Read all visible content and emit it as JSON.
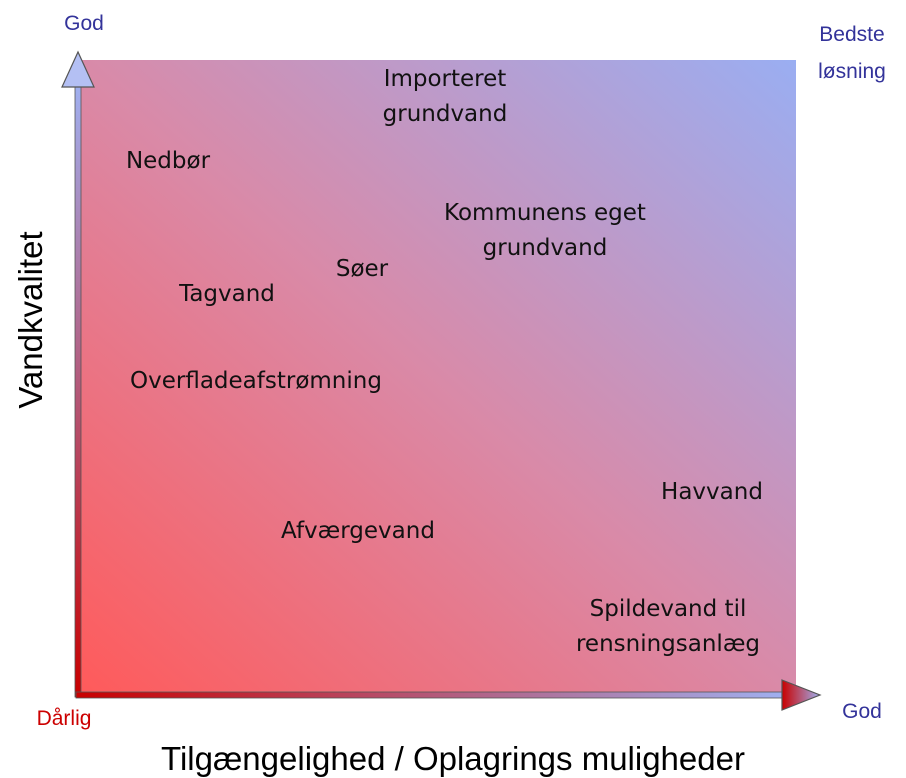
{
  "axes": {
    "y_top": "God",
    "y_bottom": "Dårlig",
    "x_right": "God",
    "corner": [
      "Bedste",
      "løsning"
    ],
    "x_title": "Tilgængelighed / Oplagrings muligheder",
    "y_title": "Vandkvalitet"
  },
  "nodes": [
    {
      "lines": [
        "Importeret",
        "grundvand"
      ]
    },
    {
      "lines": [
        "Nedbør"
      ]
    },
    {
      "lines": [
        "Kommunens eget",
        "grundvand"
      ]
    },
    {
      "lines": [
        "Søer"
      ]
    },
    {
      "lines": [
        "Tagvand"
      ]
    },
    {
      "lines": [
        "Overfladeafstrømning"
      ]
    },
    {
      "lines": [
        "Havvand"
      ]
    },
    {
      "lines": [
        "Afværgevand"
      ]
    },
    {
      "lines": [
        "Spildevand til",
        "rensningsanlæg"
      ]
    }
  ]
}
